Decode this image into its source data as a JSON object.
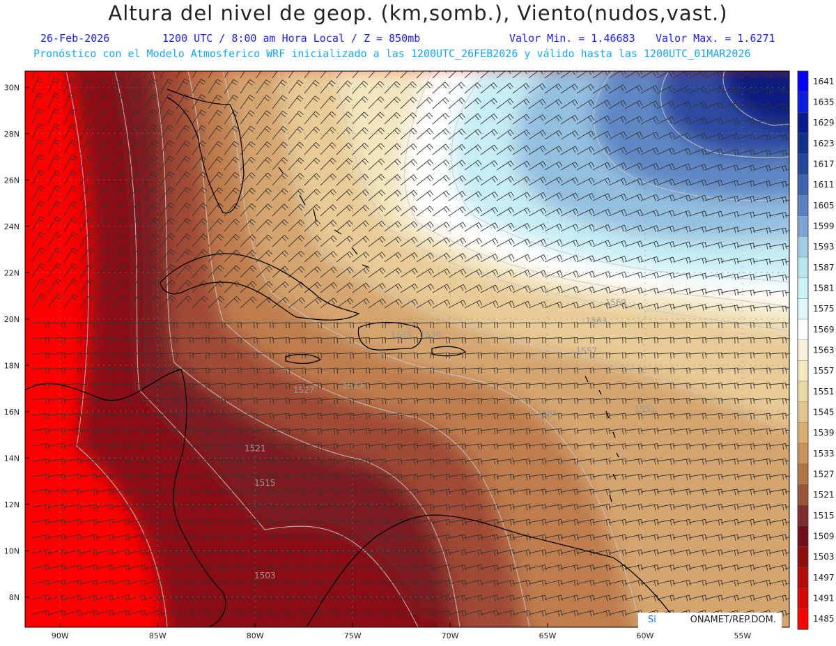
{
  "header": {
    "title": "Altura del nivel de geop. (km,somb.), Viento(nudos,vast.)",
    "date": "26-Feb-2026",
    "time_info": "1200 UTC / 8:00 am Hora Local / Z = 850mb",
    "min_value": "Valor Min. = 1.46683",
    "max_value": "Valor Max. = 1.6271",
    "forecast_info": "Pronóstico con el Modelo Atmosferico WRF inicializado a las 1200UTC_26FEB2026 y válido hasta las  1200UTC_01MAR2026"
  },
  "map": {
    "lat_labels": [
      "30N",
      "28N",
      "26N",
      "24N",
      "22N",
      "20N",
      "18N",
      "16N",
      "14N",
      "12N",
      "10N",
      "8N"
    ],
    "lat_values": [
      30,
      28,
      26,
      24,
      22,
      20,
      18,
      16,
      14,
      12,
      10,
      8
    ],
    "lon_labels": [
      "90W",
      "85W",
      "80W",
      "75W",
      "70W",
      "65W",
      "60W",
      "55W"
    ],
    "lon_values": [
      -90,
      -85,
      -80,
      -75,
      -70,
      -65,
      -60,
      -55
    ],
    "contour_labels": [
      {
        "text": "1503",
        "lon": -79.5,
        "lat": 8.8
      },
      {
        "text": "1515",
        "lon": -79.5,
        "lat": 12.8
      },
      {
        "text": "1521",
        "lon": -80.0,
        "lat": 14.3
      },
      {
        "text": "1527",
        "lon": -77.5,
        "lat": 16.8
      },
      {
        "text": "1533",
        "lon": -75.0,
        "lat": 17.0
      },
      {
        "text": "1535",
        "lon": -72.5,
        "lat": 19.2
      },
      {
        "text": "1539",
        "lon": -71.0,
        "lat": 19.2
      },
      {
        "text": "1545",
        "lon": -65.0,
        "lat": 15.8
      },
      {
        "text": "1551",
        "lon": -60.0,
        "lat": 16.0
      },
      {
        "text": "1557",
        "lon": -63.0,
        "lat": 18.5
      },
      {
        "text": "1563",
        "lon": -62.5,
        "lat": 19.8
      },
      {
        "text": "1569",
        "lon": -61.5,
        "lat": 20.6
      }
    ]
  },
  "colorbar": {
    "labels": [
      "1641",
      "1635",
      "1629",
      "1623",
      "1617",
      "1611",
      "1605",
      "1599",
      "1593",
      "1587",
      "1581",
      "1575",
      "1569",
      "1563",
      "1557",
      "1551",
      "1545",
      "1539",
      "1533",
      "1527",
      "1521",
      "1515",
      "1509",
      "1503",
      "1497",
      "1491",
      "1485"
    ],
    "colors": [
      "#0000ff",
      "#0d1de0",
      "#0a1a8f",
      "#122f8c",
      "#23469e",
      "#3c62b0",
      "#5a80c2",
      "#7ea4d4",
      "#a4cbe6",
      "#b9e5f0",
      "#c9f1f6",
      "#def7f9",
      "#ffffff",
      "#f6f0d8",
      "#f3e7c0",
      "#ecd7a6",
      "#e4c48e",
      "#d9ae74",
      "#c9935b",
      "#b27646",
      "#9b5536",
      "#7e2e2a",
      "#6d1018",
      "#8e0e0e",
      "#b40a0a",
      "#d60808",
      "#ff0000"
    ]
  },
  "credit": {
    "left": "Si",
    "right": "ONAMET/REP.DOM."
  }
}
